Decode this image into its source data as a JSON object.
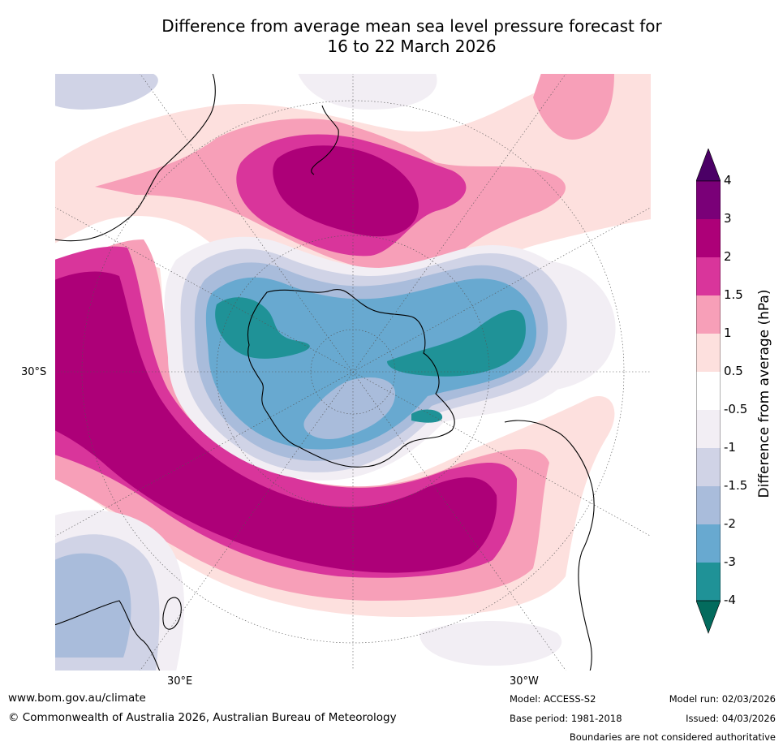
{
  "title": {
    "line1": "Difference from average mean sea level pressure forecast for",
    "line2": "16 to 22 March 2026"
  },
  "map": {
    "projection": "south polar stereographic",
    "labels": {
      "lat_30s": "30°S",
      "lon_30e": "30°E",
      "lon_30w": "30°W"
    },
    "features": [
      "Antarctica",
      "Australia",
      "New Zealand",
      "South America",
      "Africa",
      "Madagascar"
    ]
  },
  "colorbar": {
    "label": "Difference from average (hPa)",
    "ticks": [
      "4",
      "3",
      "2",
      "1.5",
      "1",
      "0.5",
      "-0.5",
      "-1",
      "-1.5",
      "-2",
      "-3",
      "-4"
    ],
    "colors": [
      "#4b0066",
      "#7a0078",
      "#ad0078",
      "#d9359b",
      "#f79fb8",
      "#fde0de",
      "#ffffff",
      "#f2eef4",
      "#d0d3e6",
      "#a9bcdb",
      "#68a9d0",
      "#1f9297",
      "#036b5d"
    ]
  },
  "footer": {
    "website": "www.bom.gov.au/climate",
    "copyright": "© Commonwealth of Australia 2026, Australian Bureau of Meteorology",
    "model": "Model: ACCESS-S2",
    "base_period": "Base period: 1981-2018",
    "model_run": "Model run: 02/03/2026",
    "issued": "Issued: 04/03/2026",
    "disclaimer": "Boundaries are not considered authoritative"
  }
}
